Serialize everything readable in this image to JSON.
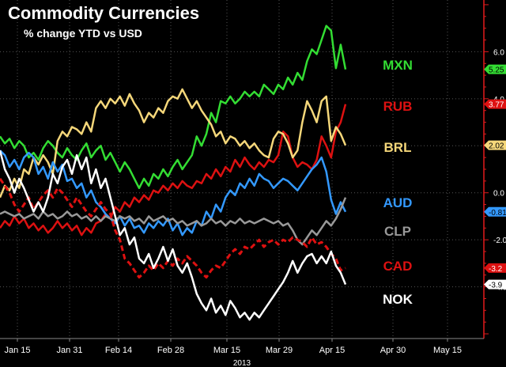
{
  "chart_data": {
    "type": "line",
    "title": "Commodity Currencies",
    "subtitle": "% change YTD vs USD",
    "x_ticks": [
      "Jan 15",
      "Jan 31",
      "Feb 14",
      "Feb 28",
      "Mar 15",
      "Mar 29",
      "Apr 15",
      "Apr 30",
      "May 15"
    ],
    "x_year_label": "2013",
    "y_ticks": [
      "6.0",
      "4.0",
      "2.0",
      "0.0",
      "-2.0",
      "-4.0"
    ],
    "ylim": [
      -6.2,
      8.2
    ],
    "grid": true,
    "axis_color": "#e31a1c",
    "series": [
      {
        "name": "MXN",
        "color": "#33dd33",
        "dash": false,
        "end_label": "5.25",
        "end_value": 5.25,
        "values": [
          2.4,
          2.1,
          2.3,
          1.9,
          2.2,
          2.0,
          1.5,
          1.7,
          1.4,
          1.9,
          2.2,
          2.0,
          1.7,
          1.5,
          1.9,
          1.6,
          1.4,
          1.8,
          2.1,
          1.5,
          1.8,
          2.0,
          1.4,
          1.7,
          1.3,
          0.9,
          1.3,
          1.0,
          0.6,
          0.2,
          0.6,
          0.3,
          0.8,
          0.6,
          1.0,
          0.7,
          1.1,
          1.4,
          1.0,
          1.3,
          1.6,
          2.4,
          2.0,
          2.5,
          3.4,
          3.0,
          3.9,
          3.8,
          4.1,
          3.8,
          4.0,
          4.3,
          4.1,
          4.3,
          4.1,
          4.6,
          4.4,
          4.2,
          4.6,
          4.4,
          4.9,
          4.6,
          5.1,
          4.8,
          5.6,
          6.1,
          5.9,
          6.5,
          7.1,
          6.9,
          5.3,
          6.3,
          5.25
        ]
      },
      {
        "name": "RUB",
        "color": "#dd1111",
        "dash": false,
        "end_label": "3.77",
        "end_value": 3.77,
        "values": [
          -1.5,
          -1.2,
          -1.4,
          -1.0,
          -1.3,
          -1.1,
          -1.5,
          -1.3,
          -1.6,
          -1.4,
          -1.7,
          -1.5,
          -1.2,
          -1.5,
          -1.3,
          -1.6,
          -1.4,
          -1.8,
          -1.5,
          -1.7,
          -1.3,
          -1.2,
          -0.9,
          -1.1,
          -0.6,
          -0.8,
          -0.4,
          -0.6,
          -0.2,
          -0.4,
          -0.1,
          -0.3,
          0.1,
          0.0,
          0.3,
          0.1,
          0.4,
          0.2,
          0.5,
          0.3,
          0.2,
          0.5,
          0.4,
          0.8,
          0.6,
          1.0,
          0.7,
          1.1,
          0.9,
          1.4,
          1.1,
          1.5,
          1.2,
          1.0,
          1.3,
          1.1,
          1.4,
          1.3,
          1.6,
          2.6,
          2.4,
          1.5,
          1.1,
          1.3,
          1.2,
          1.0,
          1.4,
          2.4,
          2.0,
          1.5,
          2.6,
          3.0,
          3.77
        ]
      },
      {
        "name": "BRL",
        "color": "#f5d77a",
        "dash": false,
        "end_label": "2.02",
        "end_value": 2.02,
        "values": [
          -0.2,
          0.3,
          0.1,
          0.6,
          0.2,
          1.0,
          0.8,
          1.5,
          1.2,
          1.6,
          1.3,
          0.8,
          2.2,
          2.6,
          2.4,
          2.8,
          2.7,
          2.5,
          3.0,
          2.6,
          3.6,
          3.9,
          3.6,
          4.0,
          3.8,
          4.1,
          3.7,
          4.2,
          3.8,
          3.5,
          3.0,
          3.4,
          3.2,
          3.6,
          3.4,
          3.9,
          4.1,
          4.0,
          4.4,
          4.0,
          3.6,
          3.9,
          3.5,
          3.2,
          2.9,
          2.4,
          2.6,
          2.1,
          2.4,
          2.3,
          2.0,
          2.2,
          1.9,
          2.1,
          1.8,
          1.6,
          1.5,
          2.3,
          2.6,
          2.5,
          2.1,
          1.5,
          1.8,
          3.0,
          3.9,
          3.5,
          3.0,
          3.9,
          4.1,
          2.2,
          2.8,
          2.5,
          2.02
        ]
      },
      {
        "name": "AUD",
        "color": "#3399ff",
        "dash": false,
        "end_label": "-0.81",
        "end_value": -0.81,
        "values": [
          1.8,
          1.6,
          1.1,
          1.4,
          1.0,
          1.5,
          1.7,
          1.5,
          0.8,
          1.1,
          0.6,
          1.3,
          0.9,
          1.2,
          0.5,
          0.6,
          0.2,
          0.4,
          -0.2,
          0.1,
          -0.4,
          -0.6,
          -0.9,
          -1.1,
          -1.3,
          -1.0,
          -1.4,
          -1.1,
          -1.5,
          -1.4,
          -1.7,
          -1.3,
          -1.5,
          -1.2,
          -1.4,
          -1.1,
          -1.6,
          -1.3,
          -1.8,
          -1.5,
          -1.7,
          -1.2,
          -1.4,
          -0.8,
          -1.1,
          -0.5,
          -0.8,
          -0.2,
          0.1,
          -0.1,
          0.4,
          0.2,
          0.6,
          0.3,
          0.8,
          0.6,
          0.5,
          0.2,
          0.4,
          0.6,
          0.5,
          0.3,
          0.1,
          0.4,
          0.7,
          1.0,
          1.2,
          1.5,
          0.9,
          -0.3,
          -0.9,
          -0.4,
          -0.81
        ]
      },
      {
        "name": "CLP",
        "color": "#999999",
        "dash": false,
        "end_label": "",
        "end_value": -0.2,
        "values": [
          -0.9,
          -0.8,
          -0.9,
          -1.0,
          -0.9,
          -1.1,
          -1.0,
          -0.9,
          -1.1,
          -0.8,
          -1.0,
          -0.9,
          -1.1,
          -1.0,
          -0.8,
          -1.0,
          -0.9,
          -1.1,
          -1.0,
          -1.2,
          -1.0,
          -1.2,
          -1.0,
          -1.1,
          -1.2,
          -1.0,
          -1.1,
          -1.0,
          -1.2,
          -1.1,
          -1.3,
          -1.0,
          -1.2,
          -1.1,
          -1.0,
          -1.2,
          -1.1,
          -1.3,
          -1.2,
          -1.4,
          -1.3,
          -1.2,
          -1.4,
          -1.3,
          -1.1,
          -1.3,
          -1.2,
          -1.4,
          -1.2,
          -1.3,
          -1.1,
          -1.3,
          -1.2,
          -1.3,
          -1.2,
          -1.1,
          -1.2,
          -1.3,
          -1.2,
          -1.4,
          -1.3,
          -1.6,
          -2.0,
          -2.2,
          -1.9,
          -1.6,
          -1.8,
          -1.5,
          -1.2,
          -1.4,
          -1.1,
          -0.7,
          -0.2
        ]
      },
      {
        "name": "CAD",
        "color": "#dd1111",
        "dash": true,
        "end_label": "-3.2",
        "end_value": -3.2,
        "values": [
          0.6,
          0.3,
          0.0,
          -0.5,
          -0.8,
          -0.5,
          -0.2,
          -0.7,
          -0.4,
          -0.1,
          0.1,
          -0.2,
          0.2,
          0.0,
          -0.3,
          -0.6,
          -0.2,
          -0.5,
          -0.8,
          -1.0,
          -0.7,
          -0.4,
          -0.7,
          -0.9,
          -1.6,
          -2.0,
          -2.8,
          -3.0,
          -3.3,
          -3.6,
          -3.4,
          -3.1,
          -3.3,
          -3.0,
          -3.2,
          -2.9,
          -3.1,
          -2.8,
          -3.0,
          -2.7,
          -2.9,
          -3.1,
          -3.4,
          -3.6,
          -3.3,
          -3.1,
          -3.2,
          -2.9,
          -2.6,
          -2.4,
          -2.6,
          -2.3,
          -2.4,
          -2.2,
          -2.0,
          -2.3,
          -2.1,
          -2.0,
          -2.2,
          -2.0,
          -2.1,
          -1.9,
          -2.0,
          -2.1,
          -2.3,
          -1.9,
          -2.2,
          -2.1,
          -2.3,
          -2.6,
          -2.8,
          -3.3,
          -3.2
        ]
      },
      {
        "name": "NOK",
        "color": "#ffffff",
        "dash": false,
        "end_label": "-3.9",
        "end_value": -3.9,
        "values": [
          1.8,
          1.0,
          0.6,
          0.0,
          0.6,
          0.2,
          -0.3,
          -0.8,
          -0.4,
          -0.8,
          -0.2,
          0.8,
          0.4,
          1.1,
          1.4,
          0.8,
          1.6,
          1.0,
          1.5,
          0.4,
          1.0,
          0.2,
          0.6,
          -0.2,
          -1.0,
          -1.8,
          -1.5,
          -2.2,
          -1.9,
          -2.8,
          -3.0,
          -2.6,
          -3.2,
          -2.8,
          -2.3,
          -2.9,
          -2.4,
          -3.1,
          -3.4,
          -3.0,
          -3.6,
          -4.3,
          -4.7,
          -5.0,
          -4.5,
          -5.1,
          -4.8,
          -5.2,
          -4.6,
          -4.9,
          -5.3,
          -5.1,
          -5.4,
          -5.1,
          -5.3,
          -5.0,
          -4.7,
          -4.4,
          -4.1,
          -3.8,
          -3.4,
          -2.9,
          -3.4,
          -3.0,
          -2.7,
          -2.6,
          -3.0,
          -2.7,
          -3.0,
          -2.5,
          -3.1,
          -3.4,
          -3.9
        ]
      }
    ]
  }
}
